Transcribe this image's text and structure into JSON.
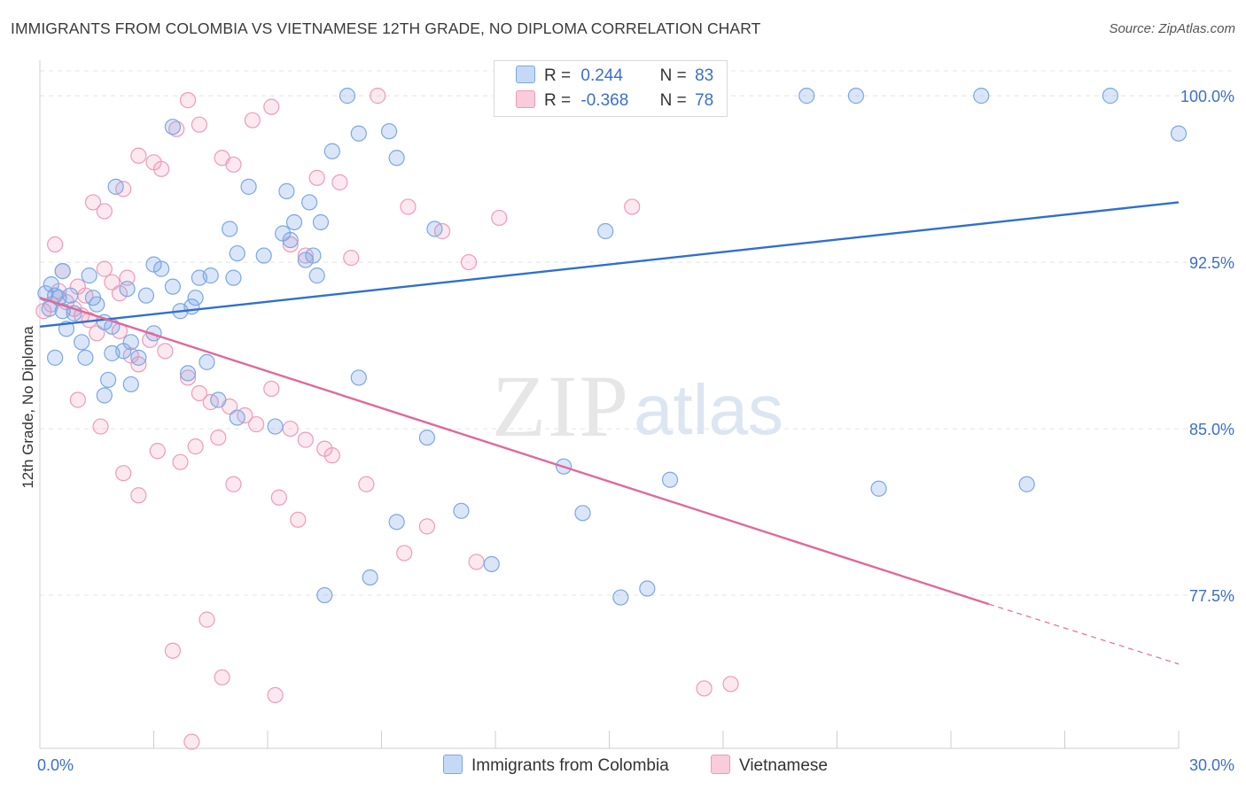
{
  "title": "IMMIGRANTS FROM COLOMBIA VS VIETNAMESE 12TH GRADE, NO DIPLOMA CORRELATION CHART",
  "source": "Source: ZipAtlas.com",
  "watermark": {
    "zip": "ZIP",
    "atlas": "atlas"
  },
  "legend": {
    "r_label": "R =",
    "n_label": "N =",
    "series1": {
      "r": "0.244",
      "n": "83"
    },
    "series2": {
      "r": "-0.368",
      "n": "78"
    }
  },
  "chart_data": {
    "type": "scatter",
    "title": "IMMIGRANTS FROM COLOMBIA VS VIETNAMESE 12TH GRADE, NO DIPLOMA CORRELATION CHART",
    "xlabel": "",
    "ylabel": "12th Grade, No Diploma",
    "xlim": [
      0,
      30
    ],
    "ylim": [
      70.6,
      101.6
    ],
    "x_tick_labels": [
      "0.0%",
      "30.0%"
    ],
    "y_ticks": [
      77.5,
      85.0,
      92.5,
      100.0
    ],
    "y_tick_labels": [
      "77.5%",
      "85.0%",
      "92.5%",
      "100.0%"
    ],
    "grid": true,
    "legend_position": "bottom",
    "colors": {
      "series1": "#7aa7e6",
      "series2": "#f09ab8",
      "trend1": "#2f6fd0",
      "trend2": "#e0699a"
    },
    "series": [
      {
        "name": "Immigrants from Colombia",
        "trend": {
          "x0": 0,
          "y0": 89.6,
          "x1": 30,
          "y1": 95.2
        },
        "points": [
          [
            0.15,
            91.1
          ],
          [
            0.25,
            90.4
          ],
          [
            0.4,
            91.0
          ],
          [
            0.5,
            90.9
          ],
          [
            0.6,
            90.3
          ],
          [
            0.7,
            89.5
          ],
          [
            0.8,
            91.0
          ],
          [
            0.9,
            90.2
          ],
          [
            0.4,
            88.2
          ],
          [
            1.1,
            88.9
          ],
          [
            1.2,
            88.2
          ],
          [
            1.9,
            88.4
          ],
          [
            2.2,
            88.5
          ],
          [
            2.4,
            88.9
          ],
          [
            2.6,
            88.2
          ],
          [
            1.8,
            87.2
          ],
          [
            1.5,
            90.6
          ],
          [
            1.7,
            89.8
          ],
          [
            1.9,
            89.6
          ],
          [
            2.3,
            91.3
          ],
          [
            2.8,
            91.0
          ],
          [
            3.0,
            92.4
          ],
          [
            3.2,
            92.2
          ],
          [
            3.0,
            89.3
          ],
          [
            3.5,
            91.4
          ],
          [
            3.7,
            90.3
          ],
          [
            4.0,
            90.5
          ],
          [
            4.1,
            90.9
          ],
          [
            4.2,
            91.8
          ],
          [
            4.5,
            91.9
          ],
          [
            5.1,
            91.8
          ],
          [
            5.2,
            92.9
          ],
          [
            5.9,
            92.8
          ],
          [
            5.0,
            94.0
          ],
          [
            6.4,
            93.8
          ],
          [
            6.6,
            93.5
          ],
          [
            6.7,
            94.3
          ],
          [
            7.0,
            92.6
          ],
          [
            7.2,
            92.8
          ],
          [
            7.3,
            91.9
          ],
          [
            7.7,
            97.5
          ],
          [
            8.4,
            98.3
          ],
          [
            9.4,
            97.2
          ],
          [
            3.5,
            98.6
          ],
          [
            5.5,
            95.9
          ],
          [
            6.5,
            95.7
          ],
          [
            7.1,
            95.2
          ],
          [
            7.4,
            94.3
          ],
          [
            2.0,
            95.9
          ],
          [
            1.3,
            91.9
          ],
          [
            0.6,
            92.1
          ],
          [
            0.3,
            91.5
          ],
          [
            4.4,
            88.0
          ],
          [
            3.9,
            87.5
          ],
          [
            5.2,
            85.5
          ],
          [
            6.2,
            85.1
          ],
          [
            2.4,
            87.0
          ],
          [
            1.7,
            86.5
          ],
          [
            4.7,
            86.3
          ],
          [
            8.4,
            87.3
          ],
          [
            9.2,
            98.4
          ],
          [
            10.4,
            94.0
          ],
          [
            14.9,
            93.9
          ],
          [
            20.2,
            100.0
          ],
          [
            21.5,
            100.0
          ],
          [
            24.8,
            100.0
          ],
          [
            28.2,
            100.0
          ],
          [
            30.0,
            98.3
          ],
          [
            8.1,
            100.0
          ],
          [
            10.2,
            84.6
          ],
          [
            13.8,
            83.3
          ],
          [
            14.3,
            81.2
          ],
          [
            15.3,
            77.4
          ],
          [
            16.0,
            77.8
          ],
          [
            9.4,
            80.8
          ],
          [
            11.1,
            81.3
          ],
          [
            11.9,
            78.9
          ],
          [
            8.7,
            78.3
          ],
          [
            7.5,
            77.5
          ],
          [
            16.6,
            82.7
          ],
          [
            22.1,
            82.3
          ],
          [
            26.0,
            82.5
          ],
          [
            1.4,
            90.9
          ]
        ]
      },
      {
        "name": "Vietnamese",
        "trend": {
          "x0": 0,
          "y0": 90.9,
          "x1": 25.0,
          "y1": 77.1,
          "dash_x1": 30,
          "dash_y1": 74.4
        },
        "points": [
          [
            0.1,
            90.3
          ],
          [
            0.3,
            90.6
          ],
          [
            0.5,
            91.2
          ],
          [
            0.7,
            90.7
          ],
          [
            0.9,
            90.4
          ],
          [
            1.1,
            90.1
          ],
          [
            1.3,
            89.9
          ],
          [
            1.5,
            89.3
          ],
          [
            0.4,
            93.3
          ],
          [
            0.6,
            92.1
          ],
          [
            1.0,
            91.4
          ],
          [
            1.2,
            91.0
          ],
          [
            1.7,
            92.2
          ],
          [
            1.9,
            91.6
          ],
          [
            2.1,
            91.1
          ],
          [
            2.3,
            91.8
          ],
          [
            1.4,
            95.2
          ],
          [
            1.7,
            94.8
          ],
          [
            2.2,
            95.8
          ],
          [
            2.6,
            97.3
          ],
          [
            3.0,
            97.0
          ],
          [
            3.2,
            96.7
          ],
          [
            3.6,
            98.5
          ],
          [
            3.9,
            99.8
          ],
          [
            4.2,
            98.7
          ],
          [
            4.8,
            97.2
          ],
          [
            5.1,
            96.9
          ],
          [
            5.6,
            98.9
          ],
          [
            6.1,
            99.5
          ],
          [
            6.6,
            93.3
          ],
          [
            7.0,
            92.8
          ],
          [
            7.3,
            96.3
          ],
          [
            7.9,
            96.1
          ],
          [
            8.2,
            92.7
          ],
          [
            8.9,
            100.0
          ],
          [
            9.7,
            95.0
          ],
          [
            10.6,
            93.9
          ],
          [
            11.3,
            92.5
          ],
          [
            12.1,
            94.5
          ],
          [
            15.6,
            95.0
          ],
          [
            2.1,
            89.4
          ],
          [
            2.4,
            88.3
          ],
          [
            2.6,
            87.9
          ],
          [
            2.9,
            89.0
          ],
          [
            3.3,
            88.5
          ],
          [
            3.9,
            87.3
          ],
          [
            4.2,
            86.6
          ],
          [
            4.5,
            86.2
          ],
          [
            5.0,
            86.0
          ],
          [
            5.4,
            85.6
          ],
          [
            5.7,
            85.2
          ],
          [
            6.1,
            86.8
          ],
          [
            6.6,
            85.0
          ],
          [
            7.0,
            84.5
          ],
          [
            7.5,
            84.1
          ],
          [
            7.7,
            83.8
          ],
          [
            4.7,
            84.6
          ],
          [
            4.1,
            84.2
          ],
          [
            1.0,
            86.3
          ],
          [
            1.6,
            85.1
          ],
          [
            3.1,
            84.0
          ],
          [
            3.7,
            83.5
          ],
          [
            2.2,
            83.0
          ],
          [
            2.6,
            82.0
          ],
          [
            5.1,
            82.5
          ],
          [
            6.3,
            81.9
          ],
          [
            6.8,
            80.9
          ],
          [
            8.6,
            82.5
          ],
          [
            10.2,
            80.6
          ],
          [
            11.5,
            79.0
          ],
          [
            9.6,
            79.4
          ],
          [
            4.4,
            76.4
          ],
          [
            3.5,
            75.0
          ],
          [
            4.8,
            73.8
          ],
          [
            6.2,
            73.0
          ],
          [
            17.5,
            73.3
          ],
          [
            18.2,
            73.5
          ],
          [
            4.0,
            70.9
          ]
        ]
      }
    ]
  }
}
